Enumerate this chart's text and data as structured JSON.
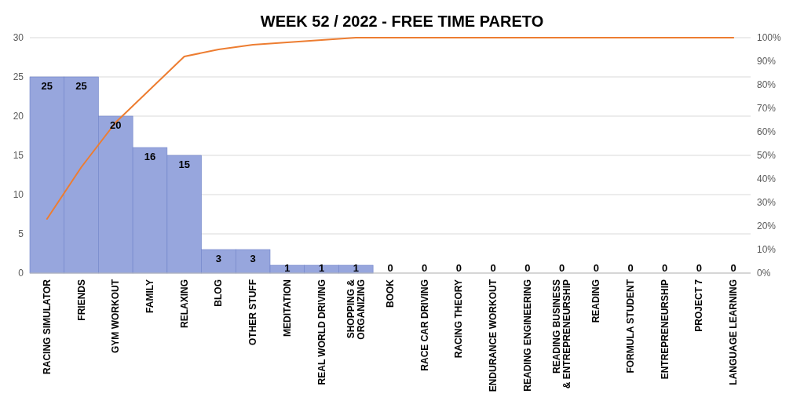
{
  "chart_data": {
    "type": "bar",
    "title": "WEEK 52 / 2022 - FREE TIME PARETO",
    "categories": [
      "RACING SIMULATOR",
      "FRIENDS",
      "GYM WORKOUT",
      "FAMILY",
      "RELAXING",
      "BLOG",
      "OTHER STUFF",
      "MEDITATION",
      "REAL WORLD DRIVING",
      "SHOPPING & ORGANIZING",
      "BOOK",
      "RACE CAR DRIVING",
      "RACING THEORY",
      "ENDURANCE WORKOUT",
      "READING ENGINEERING",
      "READING BUSINESS & ENTREPRENEURSHIP",
      "READING",
      "FORMULA STUDENT",
      "ENTREPRENEURSHIP",
      "PROJECT 7",
      "LANGUAGE LEARNING"
    ],
    "series": [
      {
        "color": "#97a6dd",
        "values": [
          25,
          25,
          20,
          16,
          15,
          3,
          3,
          1,
          1,
          1,
          0,
          0,
          0,
          0,
          0,
          0,
          0,
          0,
          0,
          0,
          0
        ],
        "value_labels": [
          "25",
          "25",
          "20",
          "16",
          "15",
          "3",
          "3",
          "1",
          "1",
          "1",
          "0",
          "0",
          "0",
          "0",
          "0",
          "0",
          "0",
          "0",
          "0",
          "0",
          "0"
        ]
      },
      {
        "type": "line",
        "axis": "y2",
        "color": "#ed7d31",
        "values": [
          23,
          45,
          64,
          78,
          92,
          95,
          97,
          98,
          99,
          100,
          100,
          100,
          100,
          100,
          100,
          100,
          100,
          100,
          100,
          100,
          100
        ]
      }
    ],
    "ylim": [
      0,
      30
    ],
    "yticks": [
      0,
      5,
      10,
      15,
      20,
      25,
      30
    ],
    "y2lim": [
      0,
      100
    ],
    "y2ticks": [
      {
        "value": 0,
        "label": "0%"
      },
      {
        "value": 10,
        "label": "10%"
      },
      {
        "value": 20,
        "label": "20%"
      },
      {
        "value": 30,
        "label": "30%"
      },
      {
        "value": 40,
        "label": "40%"
      },
      {
        "value": 50,
        "label": "50%"
      },
      {
        "value": 60,
        "label": "60%"
      },
      {
        "value": 70,
        "label": "70%"
      },
      {
        "value": 80,
        "label": "80%"
      },
      {
        "value": 90,
        "label": "90%"
      },
      {
        "value": 100,
        "label": "100%"
      }
    ],
    "grid": "y"
  }
}
